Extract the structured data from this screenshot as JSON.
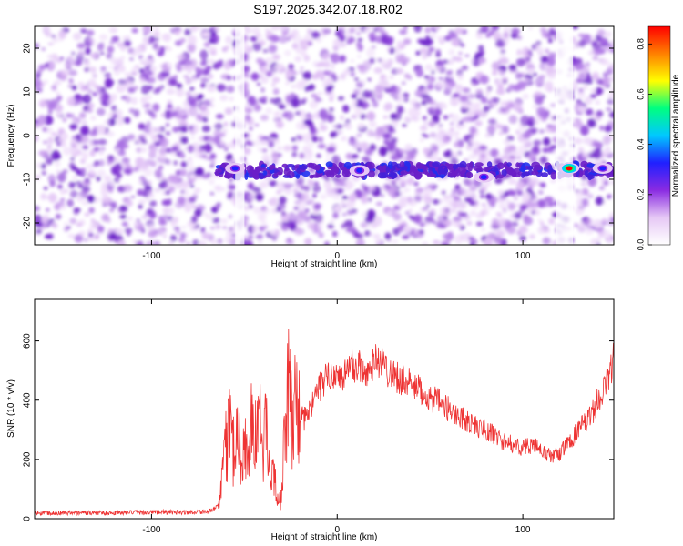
{
  "title": "S197.2025.342.07.18.R02",
  "chart_data": [
    {
      "type": "heatmap",
      "title": "S197.2025.342.07.18.R02",
      "xlabel": "Height of straight line (km)",
      "ylabel": "Frequency (Hz)",
      "xlim": [
        -163,
        149
      ],
      "ylim": [
        -25,
        25
      ],
      "x_ticks": [
        -100,
        0,
        100
      ],
      "y_ticks": [
        -20,
        -10,
        0,
        10,
        20
      ],
      "colorbar": {
        "label": "Normalized spectral amplitude",
        "range": [
          0,
          0.87
        ],
        "ticks": [
          0.0,
          0.2,
          0.4,
          0.6,
          0.8
        ],
        "colors": [
          "#ffffff",
          "#e6c8f5",
          "#8a2be2",
          "#2020ff",
          "#00c8ff",
          "#00ff80",
          "#ffff00",
          "#ff8000",
          "#ff0000"
        ]
      },
      "signal_band": {
        "frequency": -8,
        "x_range": [
          -65,
          149
        ]
      },
      "hot_spots": [
        {
          "x": -55,
          "y": -7.5,
          "amp": 0.35
        },
        {
          "x": 12,
          "y": -8,
          "amp": 0.3
        },
        {
          "x": 79,
          "y": -9.5,
          "amp": 0.33
        },
        {
          "x": 125,
          "y": -7.5,
          "amp": 0.85
        },
        {
          "x": 143,
          "y": -7.5,
          "amp": 0.3
        }
      ],
      "gaps": [
        {
          "x_range": [
            -55,
            -50
          ]
        },
        {
          "x_range": [
            118,
            127
          ]
        }
      ]
    },
    {
      "type": "line",
      "xlabel": "Height of straight line (km)",
      "ylabel": "SNR (10 * v/v)",
      "xlim": [
        -163,
        149
      ],
      "ylim": [
        0,
        740
      ],
      "x_ticks": [
        -100,
        0,
        100
      ],
      "y_ticks": [
        0,
        200,
        400,
        600
      ],
      "series": [
        {
          "color": "#ee3333",
          "x": [
            -163,
            -140,
            -120,
            -100,
            -80,
            -68,
            -64,
            -62,
            -60,
            -58,
            -56,
            -54,
            -52,
            -50,
            -48,
            -46,
            -44,
            -42,
            -40,
            -38,
            -36,
            -34,
            -32,
            -30,
            -28,
            -26,
            -24,
            -22,
            -20,
            -18,
            -16,
            -14,
            -12,
            -10,
            -8,
            -6,
            -4,
            -2,
            0,
            2,
            4,
            6,
            8,
            10,
            12,
            14,
            16,
            18,
            20,
            22,
            24,
            26,
            28,
            30,
            35,
            40,
            45,
            50,
            55,
            60,
            65,
            70,
            75,
            80,
            85,
            90,
            95,
            100,
            105,
            110,
            115,
            120,
            125,
            130,
            135,
            140,
            145,
            149
          ],
          "values": [
            20,
            20,
            20,
            22,
            22,
            25,
            45,
            120,
            240,
            320,
            240,
            300,
            230,
            250,
            220,
            320,
            260,
            370,
            240,
            300,
            120,
            160,
            80,
            60,
            330,
            430,
            310,
            420,
            360,
            330,
            360,
            370,
            420,
            440,
            450,
            480,
            470,
            500,
            480,
            470,
            490,
            500,
            520,
            510,
            520,
            500,
            490,
            520,
            530,
            540,
            520,
            510,
            500,
            490,
            470,
            450,
            430,
            410,
            390,
            370,
            350,
            330,
            310,
            300,
            280,
            260,
            250,
            240,
            250,
            230,
            210,
            220,
            260,
            300,
            330,
            390,
            460,
            540
          ]
        }
      ]
    }
  ]
}
